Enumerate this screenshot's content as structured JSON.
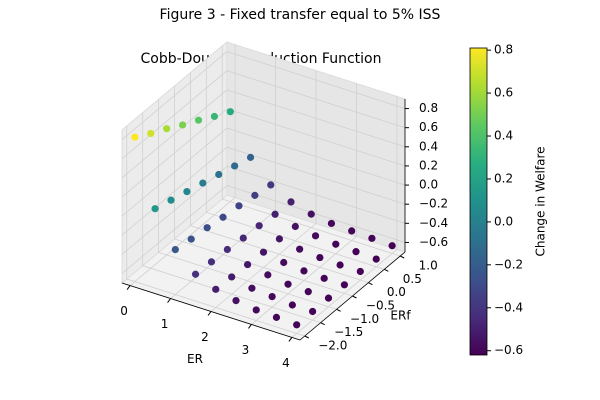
{
  "chart_data": {
    "type": "scatter3d",
    "title": "Figure 3 - Fixed transfer equal to 5% ISS",
    "subtitle": "Cobb-Douglas Production Function",
    "xlabel": "ER",
    "ylabel": "ERf",
    "x": [
      0,
      0,
      0,
      0,
      0,
      0,
      0,
      0.5,
      0.5,
      0.5,
      0.5,
      0.5,
      0.5,
      0.5,
      1,
      1,
      1,
      1,
      1,
      1,
      1,
      1.5,
      1.5,
      1.5,
      1.5,
      1.5,
      1.5,
      1.5,
      2,
      2,
      2,
      2,
      2,
      2,
      2,
      2.5,
      2.5,
      2.5,
      2.5,
      2.5,
      2.5,
      2.5,
      3,
      3,
      3,
      3,
      3,
      3,
      3,
      3.5,
      3.5,
      3.5,
      3.5,
      3.5,
      3.5,
      3.5,
      4,
      4,
      4,
      4,
      4,
      4,
      4
    ],
    "y": [
      -2,
      -1.5,
      -1,
      -0.5,
      0,
      0.5,
      1,
      -2,
      -1.5,
      -1,
      -0.5,
      0,
      0.5,
      1,
      -2,
      -1.5,
      -1,
      -0.5,
      0,
      0.5,
      1,
      -2,
      -1.5,
      -1,
      -0.5,
      0,
      0.5,
      1,
      -2,
      -1.5,
      -1,
      -0.5,
      0,
      0.5,
      1,
      -2,
      -1.5,
      -1,
      -0.5,
      0,
      0.5,
      1,
      -2,
      -1.5,
      -1,
      -0.5,
      0,
      0.5,
      1,
      -2,
      -1.5,
      -1,
      -0.5,
      0,
      0.5,
      1,
      -2,
      -1.5,
      -1,
      -0.5,
      0,
      0.5,
      1
    ],
    "values": [
      0.81,
      0.71,
      0.62,
      0.52,
      0.43,
      0.33,
      0.24,
      0.13,
      0.08,
      0.03,
      -0.02,
      -0.07,
      -0.12,
      -0.17,
      -0.23,
      -0.26,
      -0.28,
      -0.31,
      -0.33,
      -0.36,
      -0.39,
      -0.42,
      -0.43,
      -0.44,
      -0.46,
      -0.47,
      -0.49,
      -0.5,
      -0.51,
      -0.52,
      -0.53,
      -0.54,
      -0.54,
      -0.55,
      -0.56,
      -0.56,
      -0.57,
      -0.57,
      -0.58,
      -0.58,
      -0.58,
      -0.59,
      -0.59,
      -0.59,
      -0.6,
      -0.6,
      -0.6,
      -0.6,
      -0.6,
      -0.6,
      -0.61,
      -0.61,
      -0.61,
      -0.61,
      -0.61,
      -0.61,
      -0.61,
      -0.61,
      -0.61,
      -0.61,
      -0.61,
      -0.62,
      -0.62
    ],
    "xlim": [
      -0.2,
      4.2
    ],
    "ylim": [
      -2.15,
      1.15
    ],
    "zlim": [
      -0.7,
      0.9
    ],
    "xticks": [
      0,
      1,
      2,
      3,
      4
    ],
    "yticks": [
      {
        "value": -2,
        "label": "−2.0"
      },
      {
        "value": -1.5,
        "label": "−1.5"
      },
      {
        "value": -1,
        "label": "−1.0"
      },
      {
        "value": -0.5,
        "label": "−0.5"
      },
      {
        "value": 0,
        "label": "0.0"
      },
      0.5,
      {
        "value": 1,
        "label": "1.0"
      }
    ],
    "zticks": [
      {
        "value": -0.6,
        "label": "−0.6"
      },
      {
        "value": -0.4,
        "label": "−0.4"
      },
      {
        "value": -0.2,
        "label": "−0.2"
      },
      {
        "value": 0,
        "label": "0.0"
      },
      0.2,
      0.4,
      0.6,
      0.8
    ],
    "grid": true,
    "colorbar": {
      "label": "Change in Welfare",
      "cmap": "viridis",
      "clim": [
        -0.62,
        0.81
      ],
      "ticks": [
        {
          "value": -0.6,
          "label": "−0.6"
        },
        {
          "value": -0.4,
          "label": "−0.4"
        },
        {
          "value": -0.2,
          "label": "−0.2"
        },
        {
          "value": 0,
          "label": "0.0"
        },
        0.2,
        0.4,
        0.6,
        0.8
      ]
    }
  }
}
